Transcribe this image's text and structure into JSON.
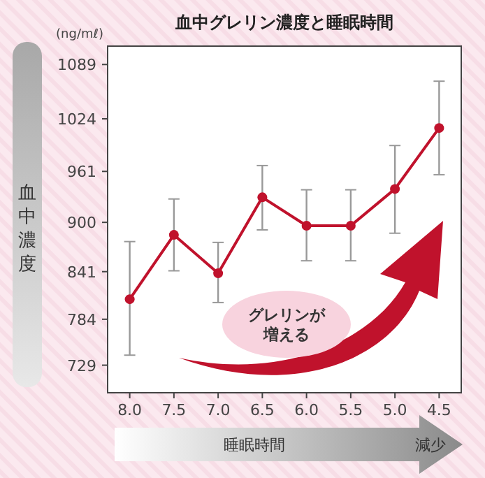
{
  "chart_data": {
    "type": "line",
    "title": "血中グレリン濃度と睡眠時間",
    "ylabel": "血中濃度",
    "xlabel": "睡眠時間",
    "categories": [
      "8.0",
      "7.5",
      "7.0",
      "6.5",
      "6.0",
      "5.5",
      "5.0",
      "4.5"
    ],
    "series": [
      {
        "color": "#c0122c",
        "values": [
          808,
          885,
          839,
          930,
          896,
          896,
          940,
          1013
        ],
        "errors": [
          [
            741,
            877
          ],
          [
            842,
            928
          ],
          [
            804,
            876
          ],
          [
            891,
            968
          ],
          [
            854,
            939
          ],
          [
            854,
            939
          ],
          [
            887,
            992
          ],
          [
            957,
            1069
          ]
        ]
      }
    ],
    "ylim": [
      696,
      1111
    ],
    "yticks": [
      729,
      784,
      841,
      900,
      961,
      1024,
      1089
    ],
    "marker": "circle",
    "line_style": "solid",
    "grid": false,
    "annotations": [
      "(ng/mℓ)",
      "グレリンが増える",
      "減少"
    ]
  }
}
